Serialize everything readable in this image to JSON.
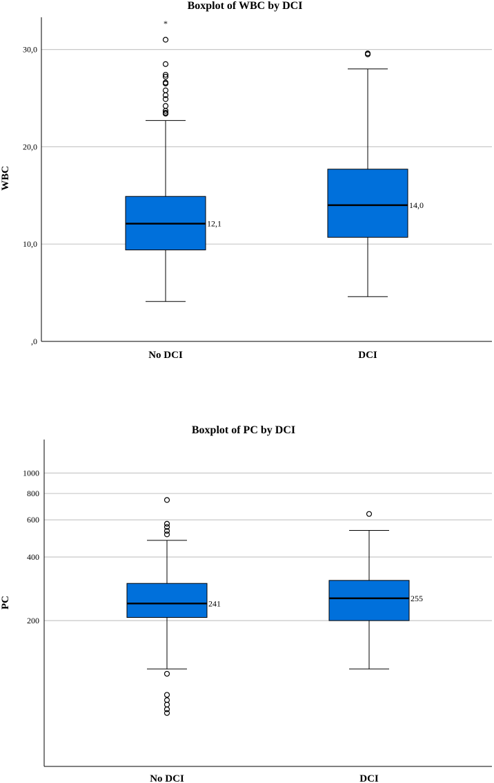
{
  "chart_data": [
    {
      "type": "boxplot",
      "title": "Boxplot of WBC by DCI",
      "ylabel": "WBC",
      "xlabel": "",
      "categories": [
        "No DCI",
        "DCI"
      ],
      "ylim": [
        0,
        33
      ],
      "yscale": "linear",
      "yticks": [
        0,
        10,
        20,
        30
      ],
      "ytick_labels": [
        ",0",
        "10,0",
        "20,0",
        "30,0"
      ],
      "grid": true,
      "box_color": "#0070DB",
      "boxes": [
        {
          "category": "No DCI",
          "whisker_low": 4.1,
          "q1": 9.4,
          "median": 12.1,
          "q3": 14.9,
          "whisker_high": 22.7,
          "median_label": "12,1",
          "outliers": [
            23.4,
            23.5,
            23.7,
            24.2,
            24.9,
            25.3,
            25.8,
            26.5,
            26.6,
            27.2,
            27.4,
            28.5,
            31.0
          ],
          "extremes": [
            32.8
          ]
        },
        {
          "category": "DCI",
          "whisker_low": 4.6,
          "q1": 10.7,
          "median": 14.0,
          "q3": 17.7,
          "whisker_high": 28.0,
          "median_label": "14,0",
          "outliers": [
            29.5,
            29.6
          ],
          "extremes": []
        }
      ]
    },
    {
      "type": "boxplot",
      "title": "Boxplot of PC by DCI",
      "ylabel": "PC",
      "xlabel": "",
      "categories": [
        "No DCI",
        "DCI"
      ],
      "ylim": [
        50,
        1000
      ],
      "yscale": "log",
      "yticks": [
        200,
        400,
        600,
        800,
        1000
      ],
      "ytick_labels": [
        "200",
        "400",
        "600",
        "800",
        "1000"
      ],
      "grid": true,
      "box_color": "#0070DB",
      "boxes": [
        {
          "category": "No DCI",
          "whisker_low": 118,
          "q1": 207,
          "median": 241,
          "q3": 300,
          "whisker_high": 480,
          "median_label": "241",
          "outliers": [
            112,
            89,
            84,
            80,
            76,
            73,
            512,
            532,
            555,
            575,
            745
          ],
          "extremes": []
        },
        {
          "category": "DCI",
          "whisker_low": 118,
          "q1": 200,
          "median": 255,
          "q3": 310,
          "whisker_high": 535,
          "median_label": "255",
          "outliers": [
            640
          ],
          "extremes": []
        }
      ]
    }
  ]
}
